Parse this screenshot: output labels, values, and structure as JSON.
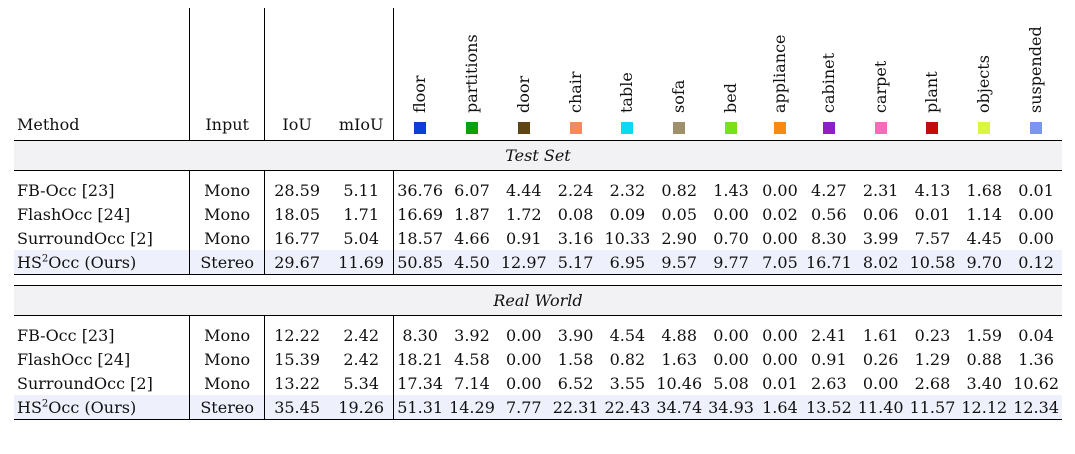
{
  "columns": {
    "method": "Method",
    "input": "Input",
    "iou": "IoU",
    "miou": "mIoU"
  },
  "classes": [
    {
      "name": "floor",
      "color": "#0f3dd8"
    },
    {
      "name": "partitions",
      "color": "#0aa10a"
    },
    {
      "name": "door",
      "color": "#5e4513"
    },
    {
      "name": "chair",
      "color": "#f58a5c"
    },
    {
      "name": "table",
      "color": "#0fd8f2"
    },
    {
      "name": "sofa",
      "color": "#a0906a"
    },
    {
      "name": "bed",
      "color": "#7be018"
    },
    {
      "name": "appliance",
      "color": "#f78a10"
    },
    {
      "name": "cabinet",
      "color": "#8e1fc4"
    },
    {
      "name": "carpet",
      "color": "#f76bb8"
    },
    {
      "name": "plant",
      "color": "#c40b0b"
    },
    {
      "name": "objects",
      "color": "#dcf53e"
    },
    {
      "name": "suspended",
      "color": "#7a94f0"
    }
  ],
  "sections": [
    {
      "title": "Test Set",
      "rows": [
        {
          "method": "FB-Occ [23]",
          "input": "Mono",
          "iou": "28.59",
          "miou": "5.11",
          "values": [
            "36.76",
            "6.07",
            "4.44",
            "2.24",
            "2.32",
            "0.82",
            "1.43",
            "0.00",
            "4.27",
            "2.31",
            "4.13",
            "1.68",
            "0.01"
          ]
        },
        {
          "method": "FlashOcc [24]",
          "input": "Mono",
          "iou": "18.05",
          "miou": "1.71",
          "values": [
            "16.69",
            "1.87",
            "1.72",
            "0.08",
            "0.09",
            "0.05",
            "0.00",
            "0.02",
            "0.56",
            "0.06",
            "0.01",
            "1.14",
            "0.00"
          ]
        },
        {
          "method": "SurroundOcc [2]",
          "input": "Mono",
          "iou": "16.77",
          "miou": "5.04",
          "values": [
            "18.57",
            "4.66",
            "0.91",
            "3.16",
            "10.33",
            "2.90",
            "0.70",
            "0.00",
            "8.30",
            "3.99",
            "7.57",
            "4.45",
            "0.00"
          ]
        },
        {
          "method_base": "HS",
          "method_sup": "2",
          "method_rest": "Occ (Ours)",
          "highlight": true,
          "input": "Stereo",
          "iou": "29.67",
          "miou": "11.69",
          "values": [
            "50.85",
            "4.50",
            "12.97",
            "5.17",
            "6.95",
            "9.57",
            "9.77",
            "7.05",
            "16.71",
            "8.02",
            "10.58",
            "9.70",
            "0.12"
          ]
        }
      ]
    },
    {
      "title": "Real World",
      "rows": [
        {
          "method": "FB-Occ [23]",
          "input": "Mono",
          "iou": "12.22",
          "miou": "2.42",
          "values": [
            "8.30",
            "3.92",
            "0.00",
            "3.90",
            "4.54",
            "4.88",
            "0.00",
            "0.00",
            "2.41",
            "1.61",
            "0.23",
            "1.59",
            "0.04"
          ]
        },
        {
          "method": "FlashOcc [24]",
          "input": "Mono",
          "iou": "15.39",
          "miou": "2.42",
          "values": [
            "18.21",
            "4.58",
            "0.00",
            "1.58",
            "0.82",
            "1.63",
            "0.00",
            "0.00",
            "0.91",
            "0.26",
            "1.29",
            "0.88",
            "1.36"
          ]
        },
        {
          "method": "SurroundOcc [2]",
          "input": "Mono",
          "iou": "13.22",
          "miou": "5.34",
          "values": [
            "17.34",
            "7.14",
            "0.00",
            "6.52",
            "3.55",
            "10.46",
            "5.08",
            "0.01",
            "2.63",
            "0.00",
            "2.68",
            "3.40",
            "10.62"
          ]
        },
        {
          "method_base": "HS",
          "method_sup": "2",
          "method_rest": "Occ (Ours)",
          "highlight": true,
          "input": "Stereo",
          "iou": "35.45",
          "miou": "19.26",
          "values": [
            "51.31",
            "14.29",
            "7.77",
            "22.31",
            "22.43",
            "34.74",
            "34.93",
            "1.64",
            "13.52",
            "11.40",
            "11.57",
            "12.12",
            "12.34"
          ]
        }
      ]
    }
  ]
}
